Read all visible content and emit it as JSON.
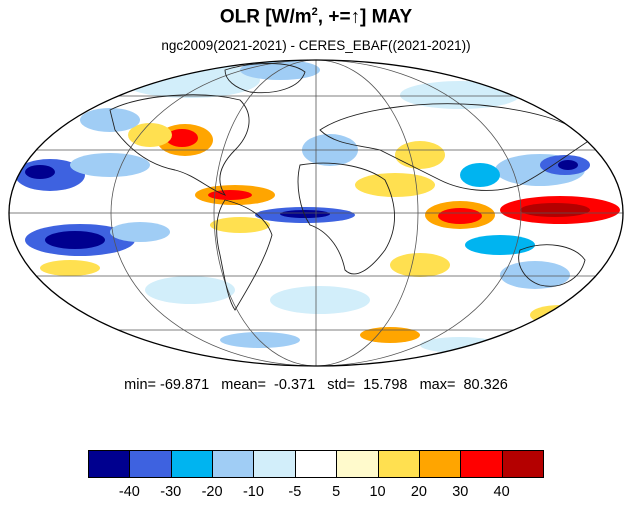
{
  "title": {
    "prefix": "OLR [W/m",
    "sup": "2",
    "middle": ", +=",
    "arrow": "↑",
    "suffix": "] MAY"
  },
  "subtitle": "ngc2009(2021-2021) - CERES_EBAF((2021-2021))",
  "stats": {
    "text": "min= -69.871   mean=  -0.371   std=  15.798   max=  80.326",
    "min": -69.871,
    "mean": -0.371,
    "std": 15.798,
    "max": 80.326
  },
  "colorbar": {
    "colors": [
      "#00008f",
      "#3e62e0",
      "#00b4f0",
      "#a0cdf5",
      "#d2eefa",
      "#ffffff",
      "#fffacc",
      "#ffe050",
      "#ffa500",
      "#ff0000",
      "#b40000"
    ],
    "ticks": [
      "-40",
      "-30",
      "-20",
      "-10",
      "-5",
      "5",
      "10",
      "20",
      "30",
      "40"
    ]
  },
  "map": {
    "projection": "mollweide",
    "ocean_color": "#ffffff"
  }
}
